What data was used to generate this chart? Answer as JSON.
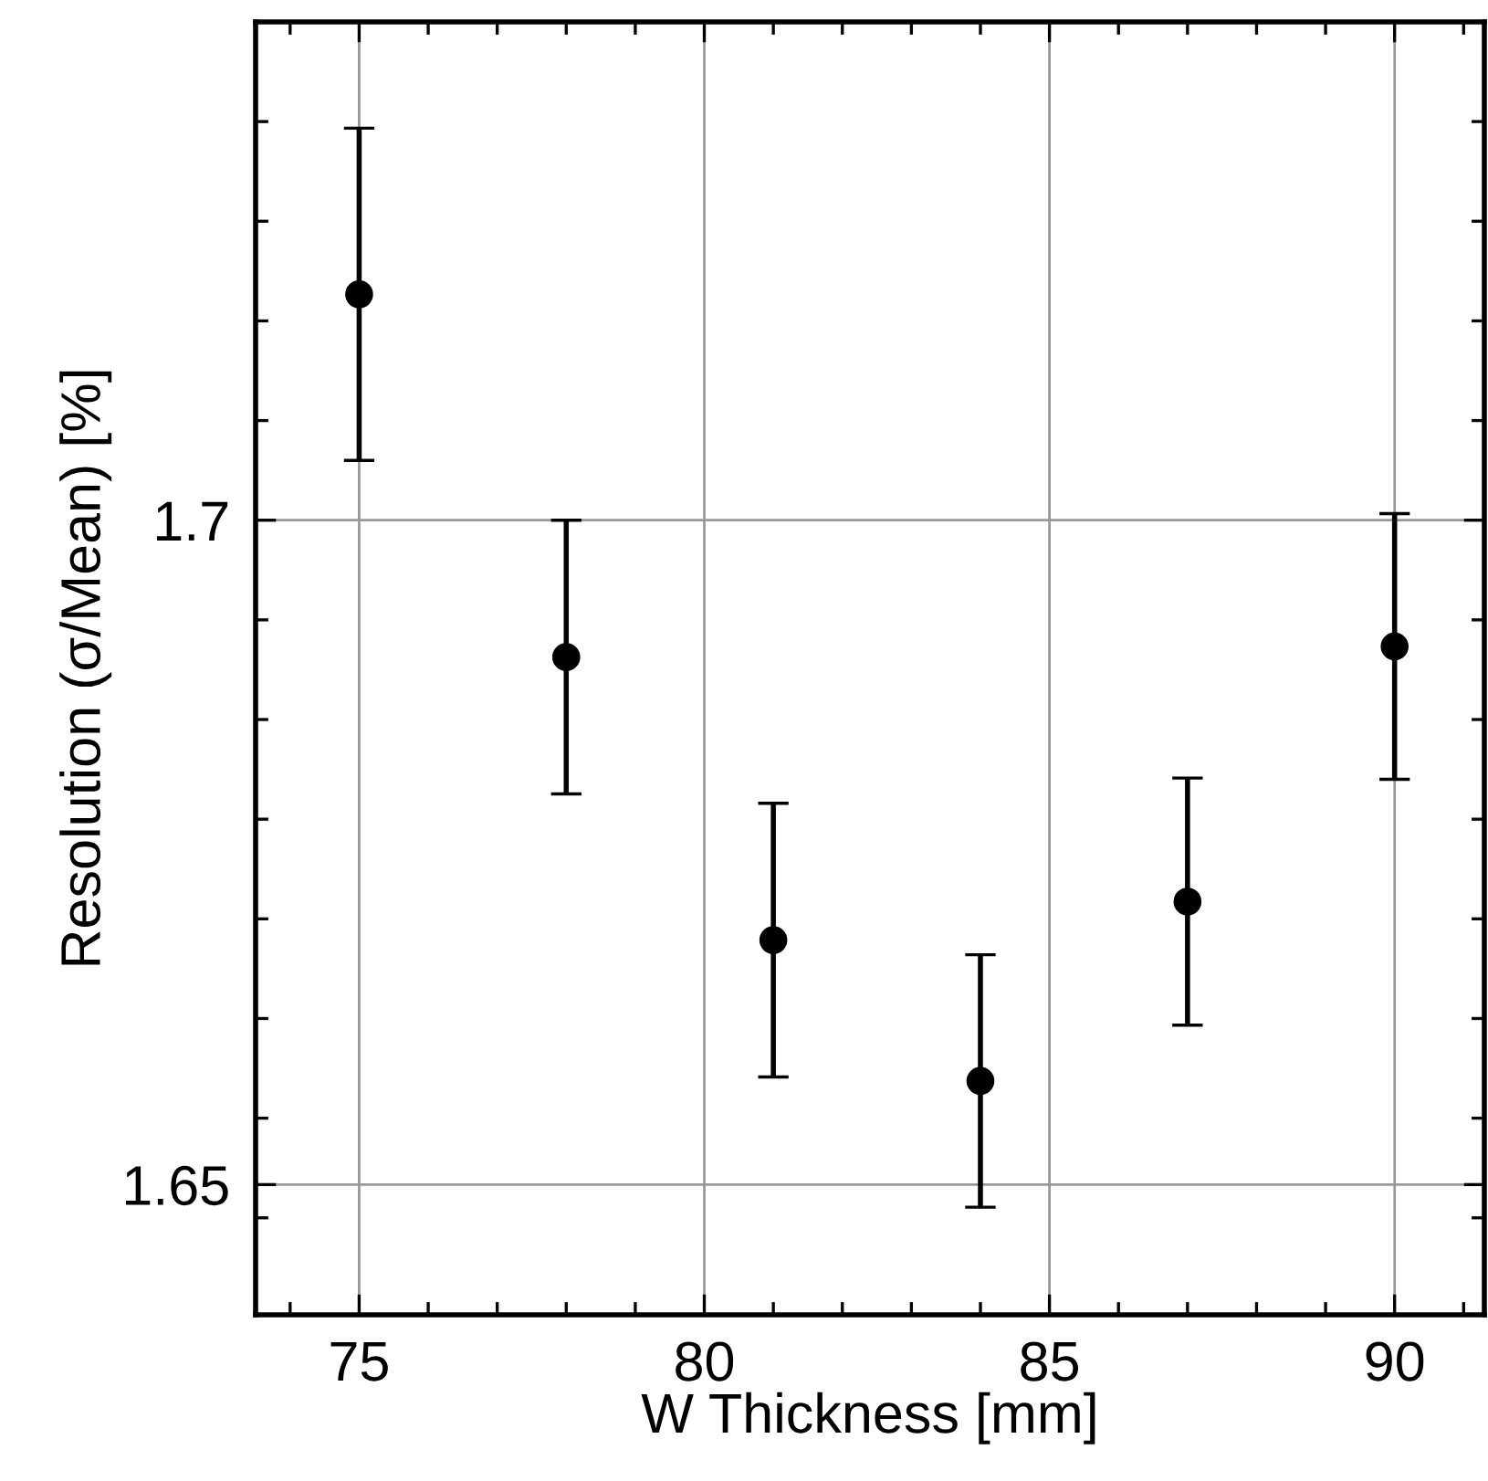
{
  "chart_data": {
    "type": "scatter",
    "xlabel": "W Thickness [mm]",
    "ylabel": "Resolution (σ/Mean) [%]",
    "x": [
      75,
      78,
      81,
      84,
      87,
      90
    ],
    "series": [
      {
        "color": "#000000",
        "values": [
          1.717,
          1.6897,
          1.6684,
          1.6578,
          1.6713,
          1.6905
        ],
        "errors": [
          0.0125,
          0.0103,
          0.0103,
          0.0095,
          0.0093,
          0.01
        ]
      }
    ],
    "marker": "circle",
    "xlim": [
      73.5,
      91.3
    ],
    "ylim": [
      1.6402,
      1.7375
    ],
    "xticks": [
      {
        "value": 74,
        "label": null
      },
      75,
      {
        "value": 76,
        "label": null
      },
      {
        "value": 77,
        "label": null
      },
      {
        "value": 78,
        "label": null
      },
      {
        "value": 79,
        "label": null
      },
      80,
      {
        "value": 81,
        "label": null
      },
      {
        "value": 82,
        "label": null
      },
      {
        "value": 83,
        "label": null
      },
      {
        "value": 84,
        "label": null
      },
      85,
      {
        "value": 86,
        "label": null
      },
      {
        "value": 87,
        "label": null
      },
      {
        "value": 88,
        "label": null
      },
      {
        "value": 89,
        "label": null
      },
      90,
      {
        "value": 91,
        "label": null
      }
    ],
    "yticks": [
      {
        "value": 1.6475,
        "label": null
      },
      1.65,
      {
        "value": 1.655,
        "label": null
      },
      {
        "value": 1.6625,
        "label": null
      },
      {
        "value": 1.67,
        "label": null
      },
      {
        "value": 1.6775,
        "label": null
      },
      {
        "value": 1.685,
        "label": null
      },
      {
        "value": 1.6925,
        "label": null
      },
      1.7,
      {
        "value": 1.7075,
        "label": null
      },
      {
        "value": 1.715,
        "label": null
      },
      {
        "value": 1.7225,
        "label": null
      },
      {
        "value": 1.73,
        "label": null
      }
    ],
    "grid": true
  }
}
